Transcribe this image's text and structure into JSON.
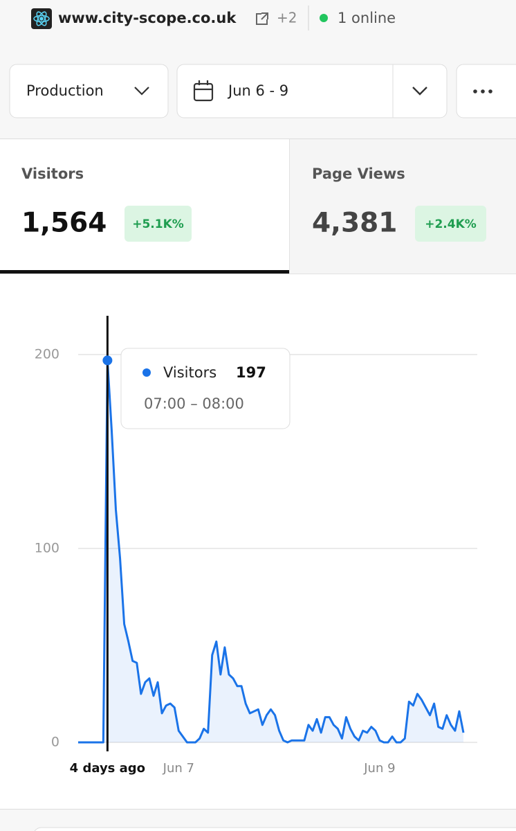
{
  "header": {
    "site": "www.city-scope.co.uk",
    "extra_sites": "+2",
    "online": "1 online"
  },
  "controls": {
    "environment": "Production",
    "date_range": "Jun 6 - 9"
  },
  "stats": [
    {
      "label": "Visitors",
      "value": "1,564",
      "change": "+5.1K%"
    },
    {
      "label": "Page Views",
      "value": "4,381",
      "change": "+2.4K%"
    }
  ],
  "chart_data": {
    "type": "line",
    "categories": [
      null,
      null,
      null,
      null,
      null,
      null,
      null,
      "4 days ago",
      null,
      null,
      null,
      null,
      null,
      null,
      null,
      null,
      null,
      null,
      null,
      null,
      null,
      null,
      null,
      null,
      "Jun 7",
      null,
      null,
      null,
      null,
      null,
      null,
      null,
      null,
      null,
      null,
      null,
      null,
      null,
      null,
      null,
      null,
      null,
      null,
      null,
      null,
      null,
      null,
      null,
      null,
      null,
      null,
      null,
      null,
      null,
      null,
      null,
      null,
      null,
      null,
      null,
      null,
      null,
      null,
      null,
      null,
      null,
      null,
      null,
      null,
      null,
      null,
      null,
      "Jun 9",
      null,
      null,
      null,
      null,
      null,
      null,
      null,
      null,
      null,
      null,
      null,
      null,
      null,
      null,
      null,
      null,
      null,
      null,
      null,
      null
    ],
    "series": [
      {
        "name": "Visitors",
        "color": "#1a73e8",
        "values": [
          0,
          0,
          0,
          0,
          0,
          0,
          0,
          197,
          161,
          120,
          95,
          61,
          52,
          42,
          41,
          25,
          31,
          33,
          24,
          31,
          15,
          19,
          20,
          18,
          6,
          3,
          0,
          0,
          0,
          2,
          7,
          5,
          45,
          52,
          35,
          49,
          35,
          33,
          29,
          29,
          20,
          15,
          16,
          17,
          9,
          14,
          17,
          14,
          6,
          1,
          0,
          1,
          1,
          1,
          1,
          9,
          6,
          12,
          5,
          13,
          13,
          9,
          7,
          2,
          13,
          7,
          3,
          1,
          6,
          5,
          8,
          6,
          1,
          0,
          0,
          3,
          0,
          0,
          2,
          21,
          19,
          25,
          22,
          18,
          14,
          20,
          8,
          7,
          14,
          9,
          6,
          16,
          5
        ]
      }
    ],
    "ylim": [
      0,
      220
    ],
    "yticks": [
      0,
      100,
      200
    ],
    "grid": true,
    "tooltip": {
      "value": 197,
      "time": "07:00 – 08:00"
    }
  }
}
